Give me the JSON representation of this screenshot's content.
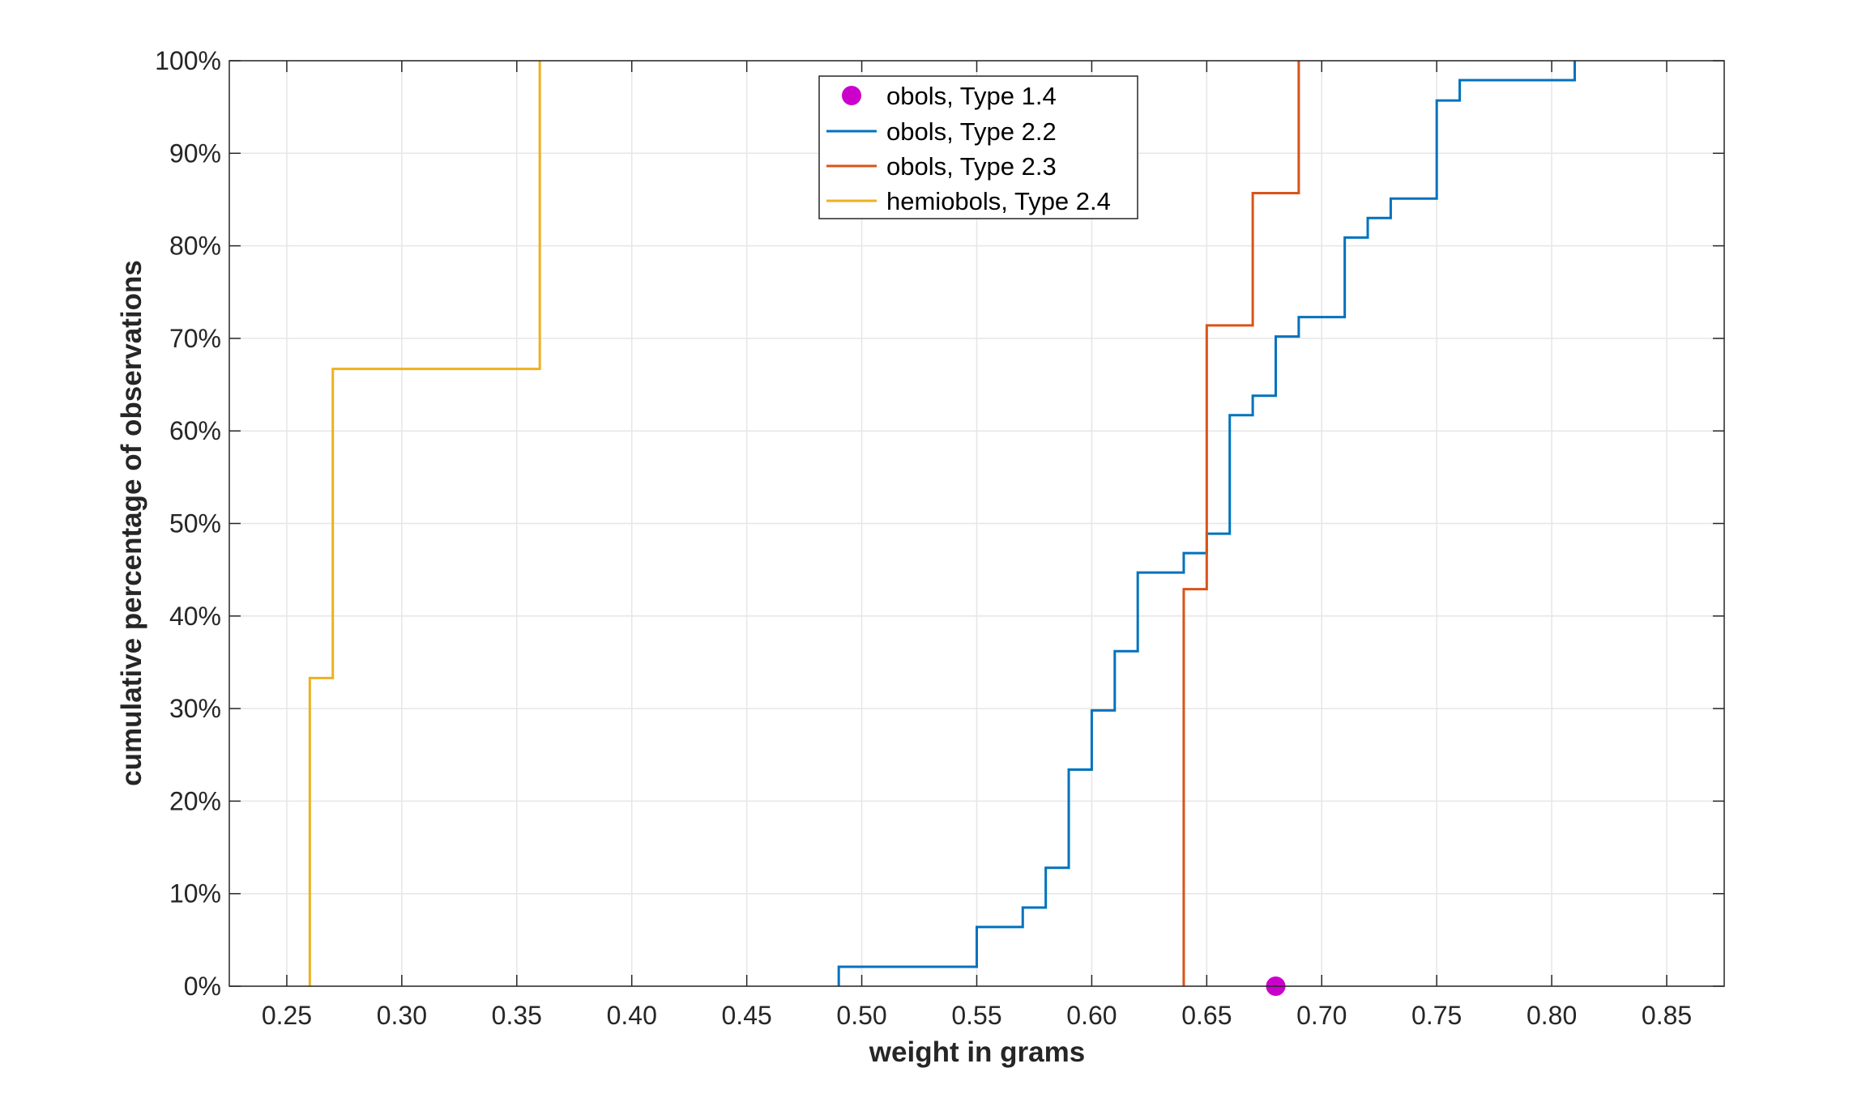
{
  "chart_data": {
    "type": "line",
    "step": "post",
    "xlabel": "weight in grams",
    "ylabel": "cumulative percentage of observations",
    "xlim": [
      0.225,
      0.875
    ],
    "ylim": [
      0,
      100
    ],
    "xticks": [
      "0.25",
      "0.30",
      "0.35",
      "0.40",
      "0.45",
      "0.50",
      "0.55",
      "0.60",
      "0.65",
      "0.70",
      "0.75",
      "0.80",
      "0.85"
    ],
    "yticks": [
      "0%",
      "10%",
      "20%",
      "30%",
      "40%",
      "50%",
      "60%",
      "70%",
      "80%",
      "90%",
      "100%"
    ],
    "grid": true,
    "legend_position": "top-center",
    "series": [
      {
        "name": "obols, Type 1.4",
        "kind": "marker",
        "color": "#CC00CC",
        "points": [
          [
            0.68,
            0
          ]
        ]
      },
      {
        "name": "obols, Type 2.2",
        "kind": "step",
        "color": "#0072BD",
        "points": [
          [
            0.49,
            0
          ],
          [
            0.49,
            2.1
          ],
          [
            0.55,
            6.4
          ],
          [
            0.57,
            8.5
          ],
          [
            0.58,
            12.8
          ],
          [
            0.59,
            23.4
          ],
          [
            0.6,
            29.8
          ],
          [
            0.61,
            36.2
          ],
          [
            0.62,
            44.7
          ],
          [
            0.64,
            46.8
          ],
          [
            0.65,
            48.9
          ],
          [
            0.66,
            61.7
          ],
          [
            0.67,
            63.8
          ],
          [
            0.68,
            70.2
          ],
          [
            0.69,
            72.3
          ],
          [
            0.71,
            80.9
          ],
          [
            0.72,
            83.0
          ],
          [
            0.73,
            85.1
          ],
          [
            0.75,
            95.7
          ],
          [
            0.76,
            97.9
          ],
          [
            0.81,
            100
          ]
        ]
      },
      {
        "name": "obols, Type 2.3",
        "kind": "step",
        "color": "#D95319",
        "points": [
          [
            0.64,
            0
          ],
          [
            0.64,
            42.9
          ],
          [
            0.65,
            71.4
          ],
          [
            0.67,
            85.7
          ],
          [
            0.69,
            100
          ]
        ]
      },
      {
        "name": "hemiobols, Type 2.4",
        "kind": "step",
        "color": "#EDB120",
        "points": [
          [
            0.26,
            0
          ],
          [
            0.26,
            33.3
          ],
          [
            0.27,
            66.7
          ],
          [
            0.36,
            100
          ]
        ]
      }
    ]
  }
}
